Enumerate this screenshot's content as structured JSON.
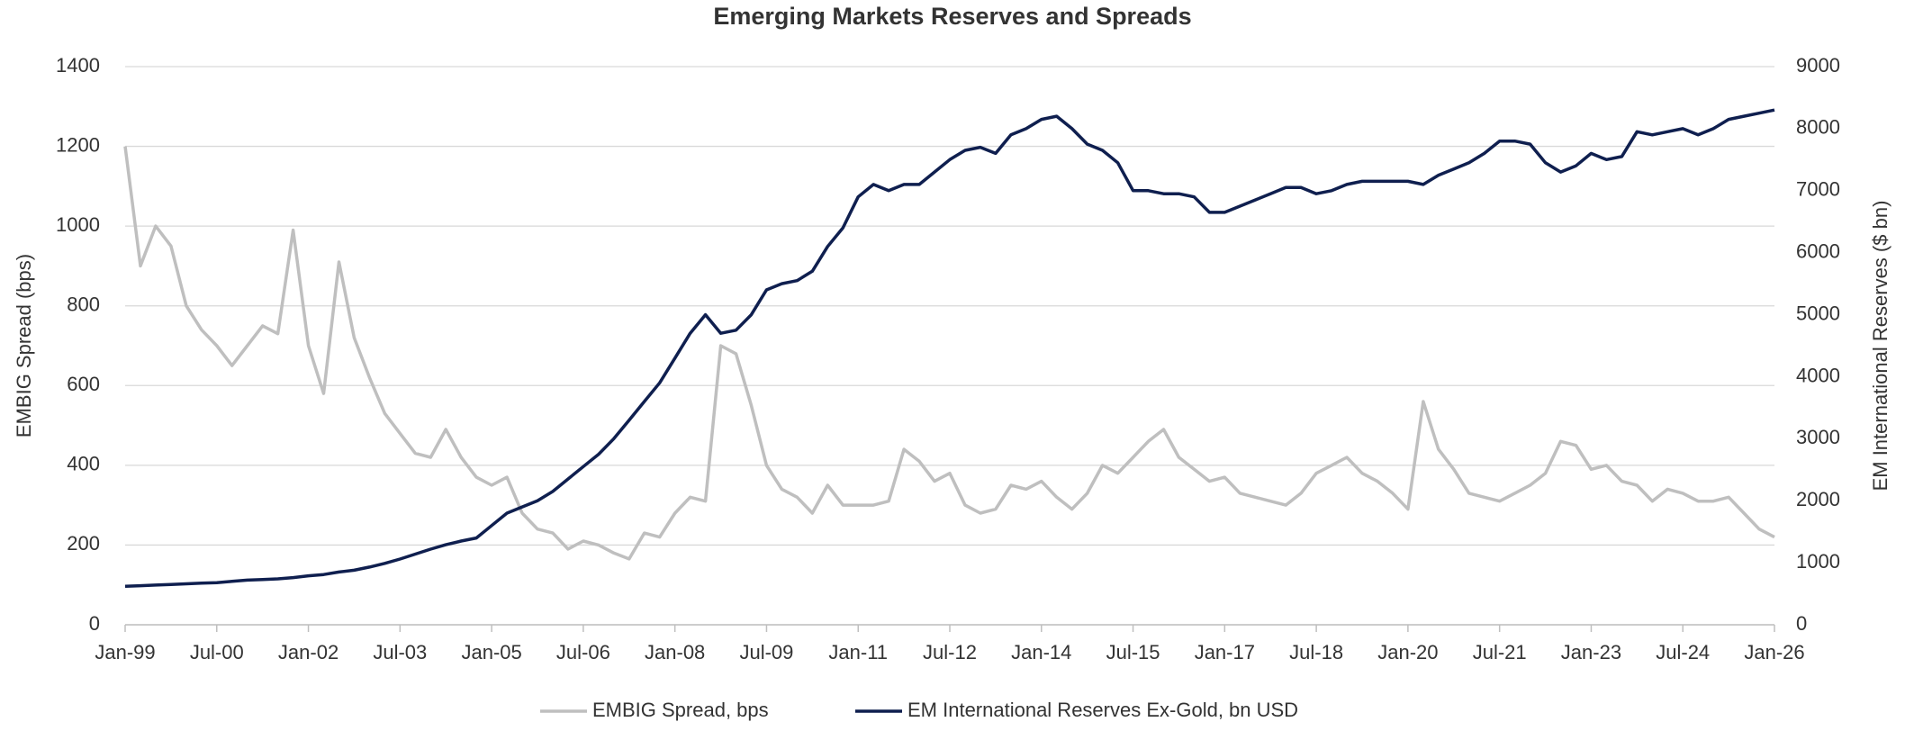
{
  "chart_data": {
    "type": "line",
    "title": "Emerging Markets Reserves and Spreads",
    "y_label": "EMBIG Spread (bps)",
    "y2_label": "EM International Reserves (ex-Gold)",
    "y2_label_text": "EM International Reserves ($ bn)",
    "x": [
      "Jan-99",
      "Apr-99",
      "Jul-99",
      "Oct-99",
      "Jan-00",
      "Apr-00",
      "Jul-00",
      "Oct-00",
      "Jan-01",
      "Apr-01",
      "Jul-01",
      "Oct-01",
      "Jan-02",
      "Apr-02",
      "Jul-02",
      "Oct-02",
      "Jan-03",
      "Apr-03",
      "Jul-03",
      "Oct-03",
      "Jan-04",
      "Apr-04",
      "Jul-04",
      "Oct-04",
      "Jan-05",
      "Apr-05",
      "Jul-05",
      "Oct-05",
      "Jan-06",
      "Apr-06",
      "Jul-06",
      "Oct-06",
      "Jan-07",
      "Apr-07",
      "Jul-07",
      "Oct-07",
      "Jan-08",
      "Apr-08",
      "Jul-08",
      "Oct-08",
      "Jan-09",
      "Apr-09",
      "Jul-09",
      "Oct-09",
      "Jan-10",
      "Apr-10",
      "Jul-10",
      "Oct-10",
      "Jan-11",
      "Apr-11",
      "Jul-11",
      "Oct-11",
      "Jan-12",
      "Apr-12",
      "Jul-12",
      "Oct-12",
      "Jan-13",
      "Apr-13",
      "Jul-13",
      "Oct-13",
      "Jan-14",
      "Apr-14",
      "Jul-14",
      "Oct-14",
      "Jan-15",
      "Apr-15",
      "Jul-15",
      "Oct-15",
      "Jan-16",
      "Apr-16",
      "Jul-16",
      "Oct-16",
      "Jan-17",
      "Apr-17",
      "Jul-17",
      "Oct-17",
      "Jan-18",
      "Apr-18",
      "Jul-18",
      "Oct-18",
      "Jan-19",
      "Apr-19",
      "Jul-19",
      "Oct-19",
      "Jan-20",
      "Apr-20",
      "Jul-20",
      "Oct-20",
      "Jan-21",
      "Apr-21",
      "Jul-21",
      "Oct-21",
      "Jan-22",
      "Apr-22",
      "Jul-22",
      "Oct-22",
      "Jan-23",
      "Apr-23",
      "Jul-23",
      "Oct-23",
      "Jan-24",
      "Apr-24",
      "Jul-24",
      "Oct-24",
      "Jan-25",
      "Apr-25",
      "Jul-25",
      "Oct-25",
      "Jan-26"
    ],
    "xticks": [
      "Jan-99",
      "Jul-00",
      "Jan-02",
      "Jul-03",
      "Jan-05",
      "Jul-06",
      "Jan-08",
      "Jul-09",
      "Jan-11",
      "Jul-12",
      "Jan-14",
      "Jul-15",
      "Jan-17",
      "Jul-18",
      "Jan-20",
      "Jul-21",
      "Jan-23",
      "Jul-24",
      "Jan-26"
    ],
    "series": [
      {
        "name": "EMBIG Spread, bps",
        "color": "#bfbfbf",
        "axis": "y",
        "values": [
          1200,
          900,
          1000,
          950,
          800,
          740,
          700,
          650,
          700,
          750,
          730,
          990,
          700,
          580,
          910,
          720,
          620,
          530,
          480,
          430,
          420,
          490,
          420,
          370,
          350,
          370,
          280,
          240,
          230,
          190,
          210,
          200,
          180,
          165,
          230,
          220,
          280,
          320,
          310,
          700,
          680,
          550,
          400,
          340,
          320,
          280,
          350,
          300,
          300,
          300,
          310,
          440,
          410,
          360,
          380,
          300,
          280,
          290,
          350,
          340,
          360,
          320,
          290,
          330,
          400,
          380,
          420,
          460,
          490,
          420,
          390,
          360,
          370,
          330,
          320,
          310,
          300,
          330,
          380,
          400,
          420,
          380,
          360,
          330,
          290,
          560,
          440,
          390,
          330,
          320,
          310,
          330,
          350,
          380,
          460,
          450,
          390,
          400,
          360,
          350,
          310,
          340,
          330,
          310,
          310,
          320,
          280,
          240,
          220
        ]
      },
      {
        "name": "EM International Reserves Ex-Gold, bn USD",
        "color": "#0f1f4f",
        "axis": "y2",
        "values": [
          620,
          630,
          640,
          650,
          660,
          670,
          680,
          700,
          720,
          730,
          740,
          760,
          790,
          810,
          850,
          880,
          930,
          990,
          1060,
          1140,
          1220,
          1290,
          1350,
          1400,
          1600,
          1800,
          1900,
          2000,
          2150,
          2350,
          2550,
          2750,
          3000,
          3300,
          3600,
          3900,
          4300,
          4700,
          5000,
          4700,
          4750,
          5000,
          5400,
          5500,
          5550,
          5700,
          6100,
          6400,
          6900,
          7100,
          7000,
          7100,
          7100,
          7300,
          7500,
          7650,
          7700,
          7600,
          7900,
          8000,
          8150,
          8200,
          8000,
          7750,
          7650,
          7450,
          7000,
          7000,
          6950,
          6950,
          6900,
          6650,
          6650,
          6750,
          6850,
          6950,
          7050,
          7050,
          6950,
          7000,
          7100,
          7150,
          7150,
          7150,
          7150,
          7100,
          7250,
          7350,
          7450,
          7600,
          7800,
          7800,
          7750,
          7450,
          7300,
          7400,
          7600,
          7500,
          7550,
          7950,
          7900,
          7950,
          8000,
          7900,
          8000,
          8150,
          8200,
          8250,
          8300
        ]
      }
    ],
    "ylim": [
      0,
      1400
    ],
    "yticks": [
      0,
      200,
      400,
      600,
      800,
      1000,
      1200,
      1400
    ],
    "y2lim": [
      0,
      9000
    ],
    "y2ticks": [
      0,
      1000,
      2000,
      3000,
      4000,
      5000,
      6000,
      7000,
      8000,
      9000
    ],
    "grid": true,
    "legend": "bottom"
  }
}
